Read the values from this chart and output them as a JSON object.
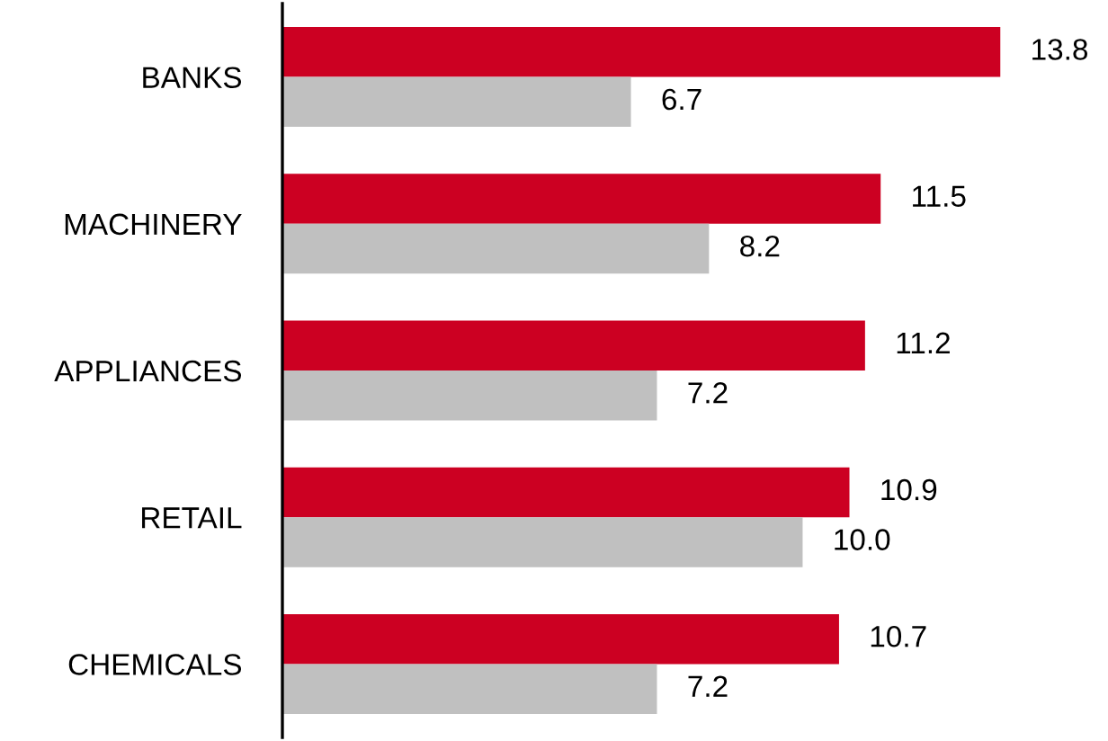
{
  "chart_data": {
    "type": "bar",
    "orientation": "horizontal",
    "categories": [
      "BANKS",
      "MACHINERY",
      "APPLIANCES",
      "RETAIL",
      "CHEMICALS"
    ],
    "series": [
      {
        "color": "#cc0022",
        "values": [
          13.8,
          11.5,
          11.2,
          10.9,
          10.7
        ],
        "value_labels": [
          "13.8",
          "11.5",
          "11.2",
          "10.9",
          "10.7"
        ]
      },
      {
        "color": "#c0c0c0",
        "values": [
          6.7,
          8.2,
          7.2,
          10.0,
          7.2
        ],
        "value_labels": [
          "6.7",
          "8.2",
          "7.2",
          "10.0",
          "7.2"
        ]
      }
    ],
    "grid": false,
    "tick_labels": "y"
  }
}
